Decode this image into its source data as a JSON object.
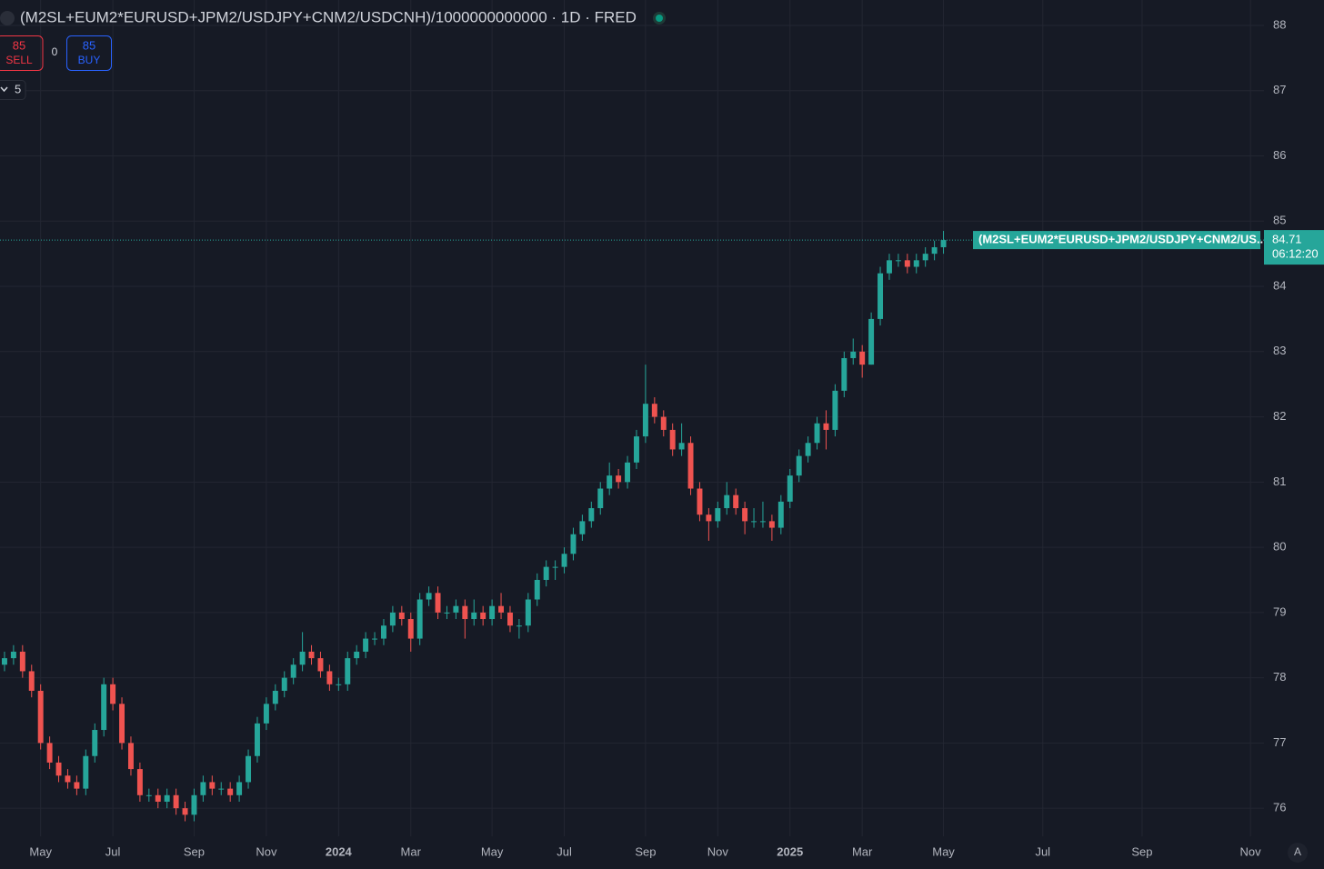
{
  "header": {
    "title": "(M2SL+EUM2*EURUSD+JPM2/USDJPY+CNM2/USDCNH)/1000000000000 · 1D · FRED",
    "sell_price": "85",
    "sell_label": "SELL",
    "spread": "0",
    "buy_price": "85",
    "buy_label": "BUY",
    "indicator_count": "5"
  },
  "chart_data": {
    "type": "candlestick",
    "categories": [
      null,
      null,
      null,
      null,
      "May",
      null,
      null,
      null,
      null,
      null,
      null,
      null,
      "Jul",
      null,
      null,
      null,
      null,
      null,
      null,
      null,
      null,
      "Sep",
      null,
      null,
      null,
      null,
      null,
      null,
      null,
      "Nov",
      null,
      null,
      null,
      null,
      null,
      null,
      null,
      "2024",
      null,
      null,
      null,
      null,
      null,
      null,
      null,
      "Mar",
      null,
      null,
      null,
      null,
      null,
      null,
      null,
      null,
      "May",
      null,
      null,
      null,
      null,
      null,
      null,
      null,
      "Jul",
      null,
      null,
      null,
      null,
      null,
      null,
      null,
      null,
      "Sep",
      null,
      null,
      null,
      null,
      null,
      null,
      null,
      "Nov",
      null,
      null,
      null,
      null,
      null,
      null,
      null,
      "2025",
      null,
      null,
      null,
      null,
      null,
      null,
      null,
      "Mar",
      null,
      null,
      null,
      null,
      null,
      null,
      null,
      null,
      "May",
      null,
      null,
      null,
      null,
      null,
      null,
      null,
      null,
      null,
      null,
      "Jul",
      null,
      null,
      null,
      null,
      null,
      null,
      null,
      null,
      null,
      null,
      "Sep",
      null,
      null,
      null,
      null,
      null,
      null,
      null,
      null,
      null,
      null,
      null,
      "Nov",
      null
    ],
    "open": [
      78.2,
      78.3,
      78.4,
      78.1,
      77.8,
      77.0,
      76.7,
      76.5,
      76.4,
      76.3,
      76.8,
      77.2,
      77.9,
      77.6,
      77.0,
      76.6,
      76.2,
      76.2,
      76.1,
      76.2,
      76.0,
      75.9,
      76.2,
      76.4,
      76.3,
      76.3,
      76.2,
      76.4,
      76.8,
      77.3,
      77.6,
      77.8,
      78.0,
      78.2,
      78.4,
      78.3,
      78.1,
      77.9,
      77.9,
      78.3,
      78.4,
      78.6,
      78.6,
      78.8,
      79.0,
      78.9,
      78.6,
      79.2,
      79.3,
      79.0,
      79.0,
      79.1,
      78.9,
      79.0,
      78.9,
      79.1,
      79.0,
      78.8,
      78.8,
      79.2,
      79.5,
      79.7,
      79.7,
      79.9,
      80.2,
      80.4,
      80.6,
      80.9,
      81.1,
      81.0,
      81.3,
      81.7,
      82.2,
      82.0,
      81.8,
      81.5,
      81.6,
      80.9,
      80.5,
      80.4,
      80.6,
      80.8,
      80.6,
      80.4,
      80.4,
      80.4,
      80.3,
      80.7,
      81.1,
      81.4,
      81.6,
      81.9,
      81.8,
      82.4,
      82.9,
      83.0,
      82.8,
      83.5,
      84.2,
      84.4,
      84.4,
      84.3,
      84.4,
      84.5,
      84.6,
      null,
      null,
      null,
      null,
      null,
      null,
      null,
      null,
      null,
      null,
      null,
      null,
      null,
      null,
      null,
      null,
      null,
      null,
      null,
      null,
      null,
      null,
      null,
      null,
      null,
      null,
      null,
      null,
      null,
      null,
      null,
      null,
      null,
      null,
      null
    ],
    "high": [
      78.4,
      78.5,
      78.5,
      78.2,
      77.9,
      77.1,
      76.8,
      76.6,
      76.5,
      76.9,
      77.3,
      78.0,
      78.0,
      77.7,
      77.1,
      76.7,
      76.3,
      76.3,
      76.3,
      76.3,
      76.1,
      76.3,
      76.5,
      76.5,
      76.4,
      76.4,
      76.5,
      76.9,
      77.4,
      77.7,
      77.9,
      78.1,
      78.3,
      78.7,
      78.5,
      78.4,
      78.2,
      78.0,
      78.4,
      78.5,
      78.7,
      78.7,
      78.9,
      79.1,
      79.1,
      79.0,
      79.3,
      79.4,
      79.4,
      79.1,
      79.2,
      79.2,
      79.2,
      79.1,
      79.2,
      79.3,
      79.1,
      78.9,
      79.3,
      79.6,
      79.8,
      79.8,
      80.0,
      80.3,
      80.5,
      80.7,
      81.0,
      81.3,
      81.2,
      81.4,
      81.8,
      82.8,
      82.3,
      82.1,
      81.9,
      81.9,
      81.7,
      81.0,
      80.6,
      80.7,
      81.0,
      80.9,
      80.7,
      80.6,
      80.7,
      80.5,
      80.8,
      81.2,
      81.5,
      81.7,
      82.0,
      82.1,
      82.5,
      83.0,
      83.2,
      83.1,
      83.6,
      84.3,
      84.5,
      84.5,
      84.5,
      84.5,
      84.6,
      84.7,
      84.85,
      null,
      null,
      null,
      null,
      null,
      null,
      null,
      null,
      null,
      null,
      null,
      null,
      null,
      null,
      null,
      null,
      null,
      null,
      null,
      null,
      null,
      null,
      null,
      null,
      null,
      null,
      null,
      null,
      null,
      null,
      null,
      null,
      null,
      null,
      null
    ],
    "low": [
      78.1,
      78.2,
      78.0,
      77.7,
      76.9,
      76.6,
      76.4,
      76.3,
      76.2,
      76.2,
      76.7,
      77.1,
      77.5,
      76.9,
      76.5,
      76.1,
      76.1,
      76.0,
      76.0,
      75.9,
      75.8,
      75.8,
      76.1,
      76.2,
      76.2,
      76.1,
      76.1,
      76.3,
      76.7,
      77.2,
      77.5,
      77.7,
      77.9,
      78.1,
      78.2,
      78.0,
      77.8,
      77.8,
      77.8,
      78.2,
      78.3,
      78.5,
      78.5,
      78.7,
      78.8,
      78.4,
      78.5,
      79.1,
      78.9,
      78.9,
      78.9,
      78.6,
      78.8,
      78.8,
      78.8,
      78.9,
      78.7,
      78.6,
      78.7,
      79.1,
      79.4,
      79.5,
      79.6,
      79.8,
      80.1,
      80.3,
      80.5,
      80.8,
      80.9,
      80.9,
      81.2,
      81.6,
      81.9,
      81.7,
      81.4,
      81.4,
      80.8,
      80.4,
      80.1,
      80.3,
      80.5,
      80.5,
      80.2,
      80.3,
      80.3,
      80.1,
      80.2,
      80.6,
      81.0,
      81.3,
      81.5,
      81.5,
      81.7,
      82.3,
      82.8,
      82.6,
      82.8,
      83.4,
      84.1,
      84.3,
      84.2,
      84.2,
      84.3,
      84.4,
      84.5,
      null,
      null,
      null,
      null,
      null,
      null,
      null,
      null,
      null,
      null,
      null,
      null,
      null,
      null,
      null,
      null,
      null,
      null,
      null,
      null,
      null,
      null,
      null,
      null,
      null,
      null,
      null,
      null,
      null,
      null,
      null,
      null,
      null,
      null,
      null
    ],
    "close": [
      78.3,
      78.4,
      78.1,
      77.8,
      77.0,
      76.7,
      76.5,
      76.4,
      76.3,
      76.8,
      77.2,
      77.9,
      77.6,
      77.0,
      76.6,
      76.2,
      76.2,
      76.1,
      76.2,
      76.0,
      75.9,
      76.2,
      76.4,
      76.3,
      76.3,
      76.2,
      76.4,
      76.8,
      77.3,
      77.6,
      77.8,
      78.0,
      78.2,
      78.4,
      78.3,
      78.1,
      77.9,
      77.9,
      78.3,
      78.4,
      78.6,
      78.6,
      78.8,
      79.0,
      78.9,
      78.6,
      79.2,
      79.3,
      79.0,
      79.0,
      79.1,
      78.9,
      79.0,
      78.9,
      79.1,
      79.0,
      78.8,
      78.8,
      79.2,
      79.5,
      79.7,
      79.7,
      79.9,
      80.2,
      80.4,
      80.6,
      80.9,
      81.1,
      81.0,
      81.3,
      81.7,
      82.2,
      82.0,
      81.8,
      81.5,
      81.6,
      80.9,
      80.5,
      80.4,
      80.6,
      80.8,
      80.6,
      80.4,
      80.4,
      80.4,
      80.3,
      80.7,
      81.1,
      81.4,
      81.6,
      81.9,
      81.8,
      82.4,
      82.9,
      83.0,
      82.8,
      83.5,
      84.2,
      84.4,
      84.4,
      84.3,
      84.4,
      84.5,
      84.6,
      84.71,
      null,
      null,
      null,
      null,
      null,
      null,
      null,
      null,
      null,
      null,
      null,
      null,
      null,
      null,
      null,
      null,
      null,
      null,
      null,
      null,
      null,
      null,
      null,
      null,
      null,
      null,
      null,
      null,
      null,
      null,
      null,
      null,
      null,
      null,
      null
    ],
    "up_color": "#26a69a",
    "down_color": "#ef5350",
    "ylim": [
      75.57,
      88.39
    ],
    "yticks": [
      76,
      77,
      78,
      79,
      80,
      81,
      82,
      83,
      84,
      85,
      86,
      87,
      88
    ],
    "grid": true,
    "last_label": "(M2SL+EUM2*EURUSD+JPM2/USDJPY+CNM2/US...",
    "countdown": "06:12:20"
  },
  "footer": {
    "scale_mode": "A"
  }
}
